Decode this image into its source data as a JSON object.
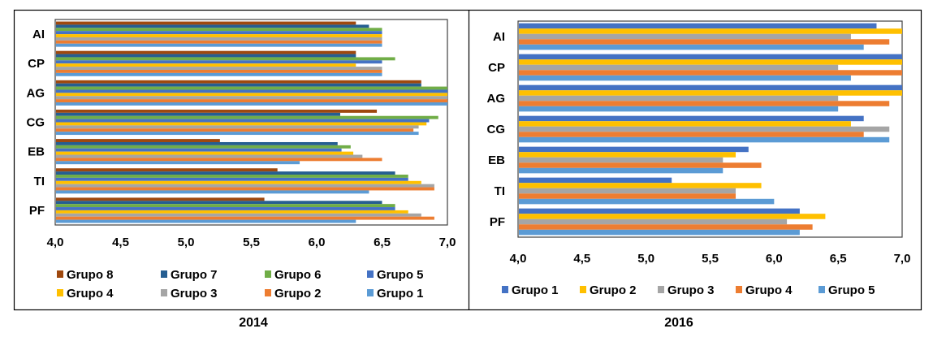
{
  "chart_data": [
    {
      "type": "bar",
      "orientation": "horizontal",
      "title": "2014",
      "categories": [
        "AI",
        "CP",
        "AG",
        "CG",
        "EB",
        "TI",
        "PF"
      ],
      "xlim": [
        4.0,
        7.0
      ],
      "xticks": [
        "4,0",
        "4,5",
        "5,0",
        "5,5",
        "6,0",
        "6,5",
        "7,0"
      ],
      "legend_position": "bottom",
      "grid": false,
      "series": [
        {
          "name": "Grupo 8",
          "color": "#9E480E",
          "values": [
            6.3,
            6.3,
            6.8,
            6.46,
            5.26,
            5.7,
            5.6
          ]
        },
        {
          "name": "Grupo 7",
          "color": "#255E91",
          "values": [
            6.4,
            6.3,
            6.8,
            6.18,
            6.16,
            6.6,
            6.5
          ]
        },
        {
          "name": "Grupo 6",
          "color": "#70AD47",
          "values": [
            6.5,
            6.6,
            7.0,
            6.93,
            6.26,
            6.7,
            6.6
          ]
        },
        {
          "name": "Grupo 5",
          "color": "#4472C4",
          "values": [
            6.5,
            6.5,
            7.0,
            6.86,
            6.19,
            6.7,
            6.6
          ]
        },
        {
          "name": "Grupo 4",
          "color": "#FFC000",
          "values": [
            6.5,
            6.3,
            7.0,
            6.84,
            6.28,
            6.8,
            6.7
          ]
        },
        {
          "name": "Grupo 3",
          "color": "#A5A5A5",
          "values": [
            6.5,
            6.5,
            7.0,
            6.78,
            6.35,
            6.9,
            6.8
          ]
        },
        {
          "name": "Grupo 2",
          "color": "#ED7D31",
          "values": [
            6.5,
            6.5,
            7.0,
            6.74,
            6.5,
            6.9,
            6.9
          ]
        },
        {
          "name": "Grupo 1",
          "color": "#5B9BD5",
          "values": [
            6.5,
            6.5,
            7.0,
            6.78,
            5.87,
            6.4,
            6.3
          ]
        }
      ]
    },
    {
      "type": "bar",
      "orientation": "horizontal",
      "title": "2016",
      "categories": [
        "AI",
        "CP",
        "AG",
        "CG",
        "EB",
        "TI",
        "PF"
      ],
      "xlim": [
        4.0,
        7.0
      ],
      "xticks": [
        "4,0",
        "4,5",
        "5,0",
        "5,5",
        "6,0",
        "6,5",
        "7,0"
      ],
      "legend_position": "bottom",
      "grid": false,
      "series": [
        {
          "name": "Grupo 1",
          "color": "#4472C4",
          "values": [
            6.8,
            7.0,
            7.0,
            6.7,
            5.8,
            5.2,
            6.2
          ]
        },
        {
          "name": "Grupo 2",
          "color": "#FFC000",
          "values": [
            7.0,
            7.0,
            7.0,
            6.6,
            5.7,
            5.9,
            6.4
          ]
        },
        {
          "name": "Grupo 3",
          "color": "#A5A5A5",
          "values": [
            6.6,
            6.5,
            6.5,
            6.9,
            5.6,
            5.7,
            6.1
          ]
        },
        {
          "name": "Grupo 4",
          "color": "#ED7D31",
          "values": [
            6.9,
            7.0,
            6.9,
            6.7,
            5.9,
            5.7,
            6.3
          ]
        },
        {
          "name": "Grupo 5",
          "color": "#5B9BD5",
          "values": [
            6.7,
            6.6,
            6.5,
            6.9,
            5.6,
            6.0,
            6.2
          ]
        }
      ]
    }
  ]
}
